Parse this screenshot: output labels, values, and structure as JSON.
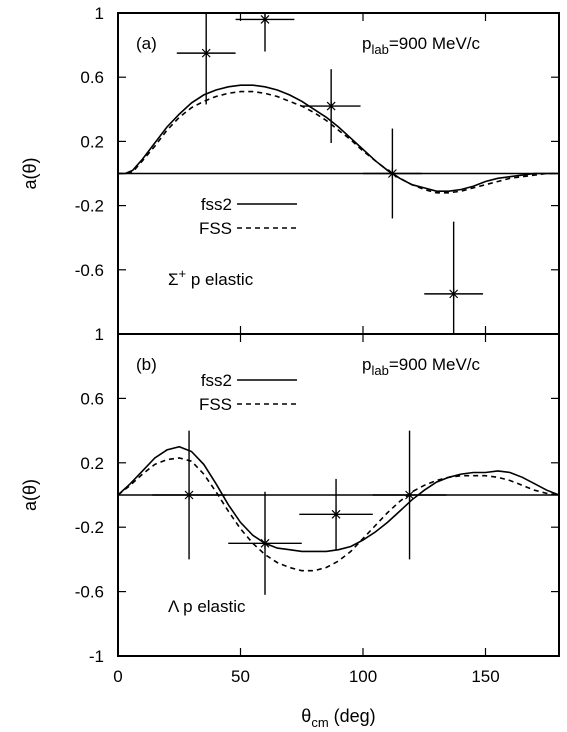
{
  "chart_data": [
    {
      "panel_label": "(a)",
      "momentum": {
        "base": "p",
        "sub": "lab",
        "rest": "=900 MeV/c"
      },
      "reaction": {
        "symbol": "Σ",
        "sup": "+",
        "rest": " p elastic"
      },
      "type": "line",
      "ylabel": "a(θ)",
      "xlim": [
        0,
        180
      ],
      "ylim": [
        -1,
        1
      ],
      "yticks": [
        -0.6,
        -0.2,
        0.2,
        0.6,
        1
      ],
      "ytick_labels": [
        "-0.6",
        "-0.2",
        "0.2",
        "0.6",
        "1"
      ],
      "bottom_tick_label": "1",
      "zero_line": true,
      "series": [
        {
          "name": "fss2",
          "style": "solid",
          "x": [
            0,
            3,
            6,
            10,
            15,
            20,
            25,
            30,
            35,
            40,
            45,
            50,
            55,
            60,
            65,
            70,
            75,
            80,
            85,
            90,
            95,
            100,
            105,
            110,
            115,
            120,
            125,
            130,
            135,
            140,
            145,
            150,
            155,
            160,
            165,
            170,
            175,
            180
          ],
          "y": [
            0,
            0,
            0.02,
            0.09,
            0.19,
            0.29,
            0.37,
            0.44,
            0.49,
            0.52,
            0.54,
            0.55,
            0.55,
            0.54,
            0.52,
            0.49,
            0.45,
            0.4,
            0.35,
            0.29,
            0.22,
            0.15,
            0.08,
            0.02,
            -0.03,
            -0.07,
            -0.09,
            -0.11,
            -0.11,
            -0.1,
            -0.08,
            -0.05,
            -0.03,
            -0.02,
            -0.01,
            0,
            0,
            0
          ]
        },
        {
          "name": "FSS",
          "style": "dashed",
          "x": [
            0,
            3,
            6,
            10,
            15,
            20,
            25,
            30,
            35,
            40,
            45,
            50,
            55,
            60,
            65,
            70,
            75,
            80,
            85,
            90,
            95,
            100,
            105,
            110,
            115,
            120,
            125,
            130,
            135,
            140,
            145,
            150,
            155,
            160,
            165,
            170,
            175,
            180
          ],
          "y": [
            0,
            0,
            0.01,
            0.08,
            0.17,
            0.27,
            0.35,
            0.41,
            0.45,
            0.48,
            0.5,
            0.51,
            0.51,
            0.5,
            0.48,
            0.45,
            0.42,
            0.38,
            0.33,
            0.27,
            0.21,
            0.14,
            0.08,
            0.02,
            -0.03,
            -0.07,
            -0.1,
            -0.12,
            -0.12,
            -0.11,
            -0.09,
            -0.07,
            -0.05,
            -0.03,
            -0.02,
            -0.01,
            0,
            0
          ]
        }
      ],
      "data_points": [
        {
          "x": 36,
          "y": 0.75,
          "xerr": 12,
          "yerr_low": 0.32,
          "yerr_high": 0.33
        },
        {
          "x": 60,
          "y": 0.96,
          "xerr": 12,
          "yerr_low": 0.2,
          "yerr_high": 0.04
        },
        {
          "x": 87,
          "y": 0.42,
          "xerr": 12,
          "yerr_low": 0.23,
          "yerr_high": 0.23
        },
        {
          "x": 112,
          "y": 0.0,
          "xerr": 12,
          "yerr_low": 0.28,
          "yerr_high": 0.28
        },
        {
          "x": 137,
          "y": -0.75,
          "xerr": 12,
          "yerr_low": 0.25,
          "yerr_high": 0.45
        }
      ],
      "legend_position": "middle-left"
    },
    {
      "panel_label": "(b)",
      "momentum": {
        "base": "p",
        "sub": "lab",
        "rest": "=900 MeV/c"
      },
      "reaction": {
        "symbol": "Λ",
        "sup": "",
        "rest": " p elastic"
      },
      "type": "line",
      "ylabel": "a(θ)",
      "xlabel": {
        "base": "θ",
        "sub": "cm",
        "rest": " (deg)"
      },
      "xlim": [
        0,
        180
      ],
      "ylim": [
        -1,
        1
      ],
      "yticks": [
        -1,
        -0.6,
        -0.2,
        0.2,
        0.6
      ],
      "ytick_labels": [
        "-1",
        "-0.6",
        "-0.2",
        "0.2",
        "0.6"
      ],
      "xticks": [
        0,
        50,
        100,
        150
      ],
      "xtick_labels": [
        "0",
        "50",
        "100",
        "150"
      ],
      "zero_line": true,
      "series": [
        {
          "name": "fss2",
          "style": "solid",
          "x": [
            0,
            5,
            10,
            15,
            20,
            25,
            30,
            35,
            40,
            45,
            50,
            55,
            60,
            65,
            70,
            75,
            80,
            85,
            90,
            95,
            100,
            105,
            110,
            115,
            120,
            125,
            130,
            135,
            140,
            145,
            150,
            155,
            160,
            165,
            170,
            175,
            180
          ],
          "y": [
            0,
            0.07,
            0.15,
            0.23,
            0.28,
            0.3,
            0.27,
            0.19,
            0.07,
            -0.06,
            -0.17,
            -0.25,
            -0.3,
            -0.33,
            -0.34,
            -0.35,
            -0.35,
            -0.35,
            -0.34,
            -0.32,
            -0.28,
            -0.23,
            -0.17,
            -0.1,
            -0.03,
            0.03,
            0.08,
            0.11,
            0.13,
            0.14,
            0.14,
            0.15,
            0.14,
            0.11,
            0.07,
            0.03,
            0
          ]
        },
        {
          "name": "FSS",
          "style": "dashed",
          "x": [
            0,
            5,
            10,
            15,
            20,
            25,
            30,
            35,
            40,
            45,
            50,
            55,
            60,
            65,
            70,
            75,
            80,
            85,
            90,
            95,
            100,
            105,
            110,
            115,
            120,
            125,
            130,
            135,
            140,
            145,
            150,
            155,
            160,
            165,
            170,
            175,
            180
          ],
          "y": [
            0,
            0.06,
            0.13,
            0.19,
            0.22,
            0.23,
            0.21,
            0.13,
            0.02,
            -0.1,
            -0.21,
            -0.3,
            -0.37,
            -0.42,
            -0.45,
            -0.47,
            -0.47,
            -0.45,
            -0.41,
            -0.35,
            -0.27,
            -0.19,
            -0.11,
            -0.04,
            0.02,
            0.06,
            0.09,
            0.11,
            0.12,
            0.12,
            0.12,
            0.11,
            0.09,
            0.06,
            0.03,
            0.01,
            0
          ]
        }
      ],
      "data_points": [
        {
          "x": 29,
          "y": 0.0,
          "xerr": 15,
          "yerr_low": 0.4,
          "yerr_high": 0.4
        },
        {
          "x": 60,
          "y": -0.3,
          "xerr": 15,
          "yerr_low": 0.32,
          "yerr_high": 0.32
        },
        {
          "x": 89,
          "y": -0.12,
          "xerr": 15,
          "yerr_low": 0.22,
          "yerr_high": 0.22
        },
        {
          "x": 119,
          "y": 0.0,
          "xerr": 15,
          "yerr_low": 0.4,
          "yerr_high": 0.4
        }
      ],
      "legend_position": "top-left"
    }
  ]
}
